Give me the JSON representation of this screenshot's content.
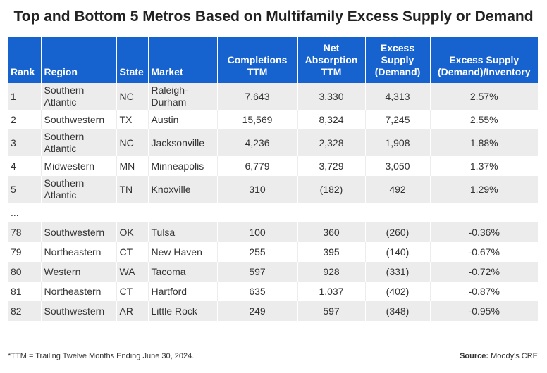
{
  "title": "Top and Bottom 5 Metros Based on Multifamily Excess Supply or Demand",
  "headers": {
    "rank": "Rank",
    "region": "Region",
    "state": "State",
    "market": "Market",
    "completions": [
      "Completions",
      "TTM"
    ],
    "net_absorption": [
      "Net",
      "Absorption",
      "TTM"
    ],
    "excess_supply": [
      "Excess",
      "Supply",
      "(Demand)"
    ],
    "ratio": [
      "Excess Supply",
      "(Demand)/Inventory"
    ]
  },
  "top_rows": [
    {
      "rank": "1",
      "region": [
        "Southern",
        "Atlantic"
      ],
      "state": "NC",
      "market": [
        "Raleigh-",
        "Durham"
      ],
      "completions": "7,643",
      "absorption": "3,330",
      "excess": "4,313",
      "ratio": "2.57%"
    },
    {
      "rank": "2",
      "region": [
        "Southwestern"
      ],
      "state": "TX",
      "market": [
        "Austin"
      ],
      "completions": "15,569",
      "absorption": "8,324",
      "excess": "7,245",
      "ratio": "2.55%"
    },
    {
      "rank": "3",
      "region": [
        "Southern",
        "Atlantic"
      ],
      "state": "NC",
      "market": [
        "Jacksonville"
      ],
      "completions": "4,236",
      "absorption": "2,328",
      "excess": "1,908",
      "ratio": "1.88%"
    },
    {
      "rank": "4",
      "region": [
        "Midwestern"
      ],
      "state": "MN",
      "market": [
        "Minneapolis"
      ],
      "completions": "6,779",
      "absorption": "3,729",
      "excess": "3,050",
      "ratio": "1.37%"
    },
    {
      "rank": "5",
      "region": [
        "Southern",
        "Atlantic"
      ],
      "state": "TN",
      "market": [
        "Knoxville"
      ],
      "completions": "310",
      "absorption": "(182)",
      "excess": "492",
      "ratio": "1.29%"
    }
  ],
  "ellipsis": "...",
  "bottom_rows": [
    {
      "rank": "78",
      "region": [
        "Southwestern"
      ],
      "state": "OK",
      "market": [
        "Tulsa"
      ],
      "completions": "100",
      "absorption": "360",
      "excess": "(260)",
      "ratio": "-0.36%"
    },
    {
      "rank": "79",
      "region": [
        "Northeastern"
      ],
      "state": "CT",
      "market": [
        "New Haven"
      ],
      "completions": "255",
      "absorption": "395",
      "excess": "(140)",
      "ratio": "-0.67%"
    },
    {
      "rank": "80",
      "region": [
        "Western"
      ],
      "state": "WA",
      "market": [
        "Tacoma"
      ],
      "completions": "597",
      "absorption": "928",
      "excess": "(331)",
      "ratio": "-0.72%"
    },
    {
      "rank": "81",
      "region": [
        "Northeastern"
      ],
      "state": "CT",
      "market": [
        "Hartford"
      ],
      "completions": "635",
      "absorption": "1,037",
      "excess": "(402)",
      "ratio": "-0.87%"
    },
    {
      "rank": "82",
      "region": [
        "Southwestern"
      ],
      "state": "AR",
      "market": [
        "Little Rock"
      ],
      "completions": "249",
      "absorption": "597",
      "excess": "(348)",
      "ratio": "-0.95%"
    }
  ],
  "footnote": "*TTM = Trailing Twelve Months Ending June 30, 2024.",
  "source_label": "Source:",
  "source_value": "Moody's CRE",
  "colors": {
    "header_bg": "#1662cf",
    "stripe": "#ececec"
  }
}
